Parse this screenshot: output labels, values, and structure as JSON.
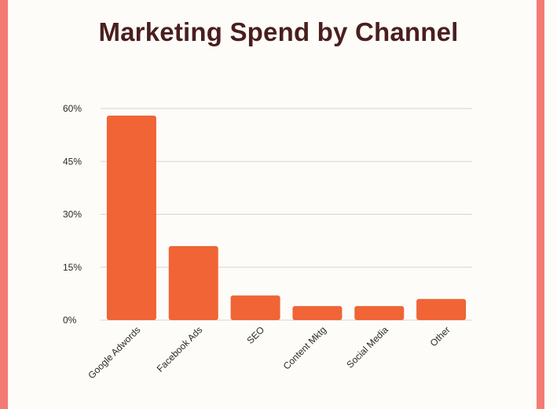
{
  "colors": {
    "background": "#FDFCF8",
    "side_border": "#F47B73",
    "bar": "#F06436",
    "title": "#4A1E1E",
    "grid": "#D5D5D5"
  },
  "chart_data": {
    "type": "bar",
    "title": "Marketing Spend by Channel",
    "categories": [
      "Google Adwords",
      "Facebook Ads",
      "SEO",
      "Content Mktg",
      "Social Media",
      "Other"
    ],
    "values": [
      58,
      21,
      7,
      4,
      4,
      6
    ],
    "value_unit": "%",
    "ylim": [
      0,
      60
    ],
    "yticks": [
      0,
      15,
      30,
      45,
      60
    ],
    "ytick_labels": [
      "0%",
      "15%",
      "30%",
      "45%",
      "60%"
    ],
    "grid": true,
    "legend": false,
    "xlabel": "",
    "ylabel": ""
  }
}
